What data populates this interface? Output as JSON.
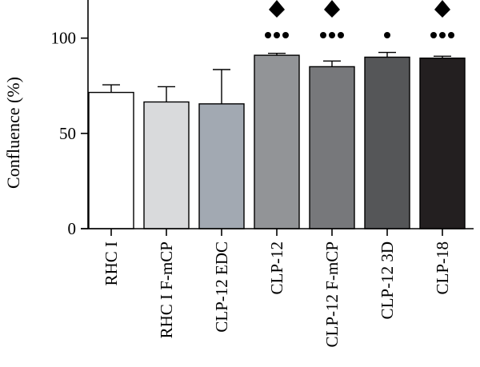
{
  "chart_data": {
    "type": "bar",
    "title": "",
    "xlabel": "",
    "ylabel": "Confluence (%)",
    "ylim": [
      0,
      120
    ],
    "yticks": [
      0,
      50,
      100
    ],
    "grid": false,
    "categories": [
      "RHC I",
      "RHC I F-mCP",
      "CLP-12 EDC",
      "CLP-12",
      "CLP-12 F-mCP",
      "CLP-12 3D",
      "CLP-18"
    ],
    "values": [
      71.5,
      66.5,
      65.5,
      91,
      85,
      90,
      89.5
    ],
    "errors": [
      4,
      8,
      18,
      1,
      3,
      2.5,
      1
    ],
    "bar_colors": [
      "#ffffff",
      "#d9dadc",
      "#a2a9b2",
      "#929497",
      "#77787b",
      "#555658",
      "#231f20"
    ],
    "annotations": [
      {
        "category": "CLP-12",
        "diamond": true,
        "dots": 3
      },
      {
        "category": "CLP-12 F-mCP",
        "diamond": true,
        "dots": 3
      },
      {
        "category": "CLP-12 3D",
        "diamond": false,
        "dots": 1
      },
      {
        "category": "CLP-18",
        "diamond": true,
        "dots": 3
      }
    ]
  }
}
